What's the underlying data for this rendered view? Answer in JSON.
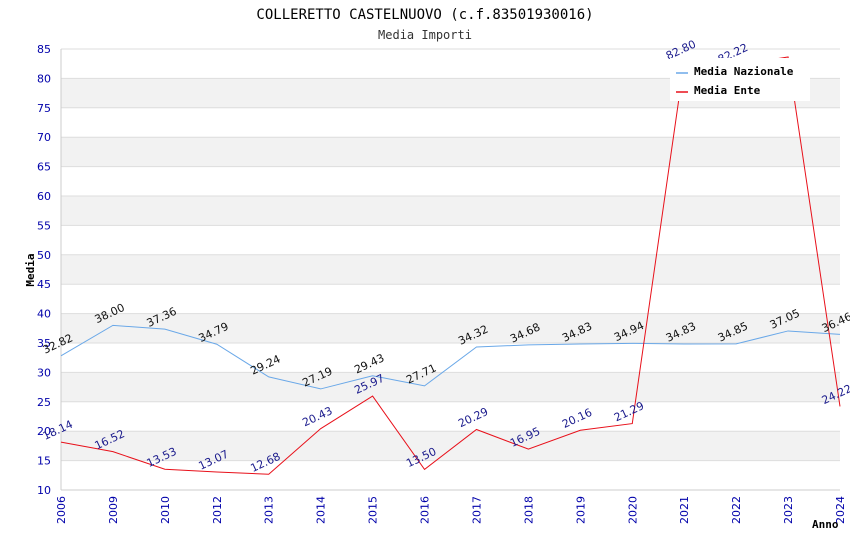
{
  "chart_data": {
    "type": "line",
    "title": "COLLERETTO CASTELNUOVO (c.f.83501930016)",
    "subtitle": "Media Importi",
    "xlabel": "Anno",
    "ylabel": "Media",
    "ylim": [
      10,
      85
    ],
    "ytick_step": 5,
    "categories": [
      "2006",
      "2009",
      "2010",
      "2012",
      "2013",
      "2014",
      "2015",
      "2016",
      "2017",
      "2018",
      "2019",
      "2020",
      "2021",
      "2022",
      "2023",
      "2024"
    ],
    "series": [
      {
        "name": "Media Nazionale",
        "color": "#6aa8e8",
        "values": [
          32.82,
          38.0,
          37.36,
          34.79,
          29.24,
          27.19,
          29.43,
          27.71,
          34.32,
          34.68,
          34.83,
          34.94,
          34.83,
          34.85,
          37.05,
          36.46
        ],
        "labels": [
          "32.82",
          "38.00",
          "37.36",
          "34.79",
          "29.24",
          "27.19",
          "29.43",
          "27.71",
          "34.32",
          "34.68",
          "34.83",
          "34.94",
          "34.83",
          "34.85",
          "37.05",
          "36.46"
        ]
      },
      {
        "name": "Media Ente",
        "color": "#e8101a",
        "values": [
          18.14,
          16.52,
          13.53,
          13.07,
          12.68,
          20.43,
          25.97,
          13.5,
          20.29,
          16.95,
          20.16,
          21.29,
          82.8,
          82.22,
          83.64,
          24.22
        ],
        "labels": [
          "18.14",
          "16.52",
          "13.53",
          "13.07",
          "12.68",
          "20.43",
          "25.97",
          "13.50",
          "20.29",
          "16.95",
          "20.16",
          "21.29",
          "82.80",
          "82.22",
          "",
          "24.22"
        ]
      }
    ],
    "grid": true,
    "legend_position": "top-right"
  }
}
